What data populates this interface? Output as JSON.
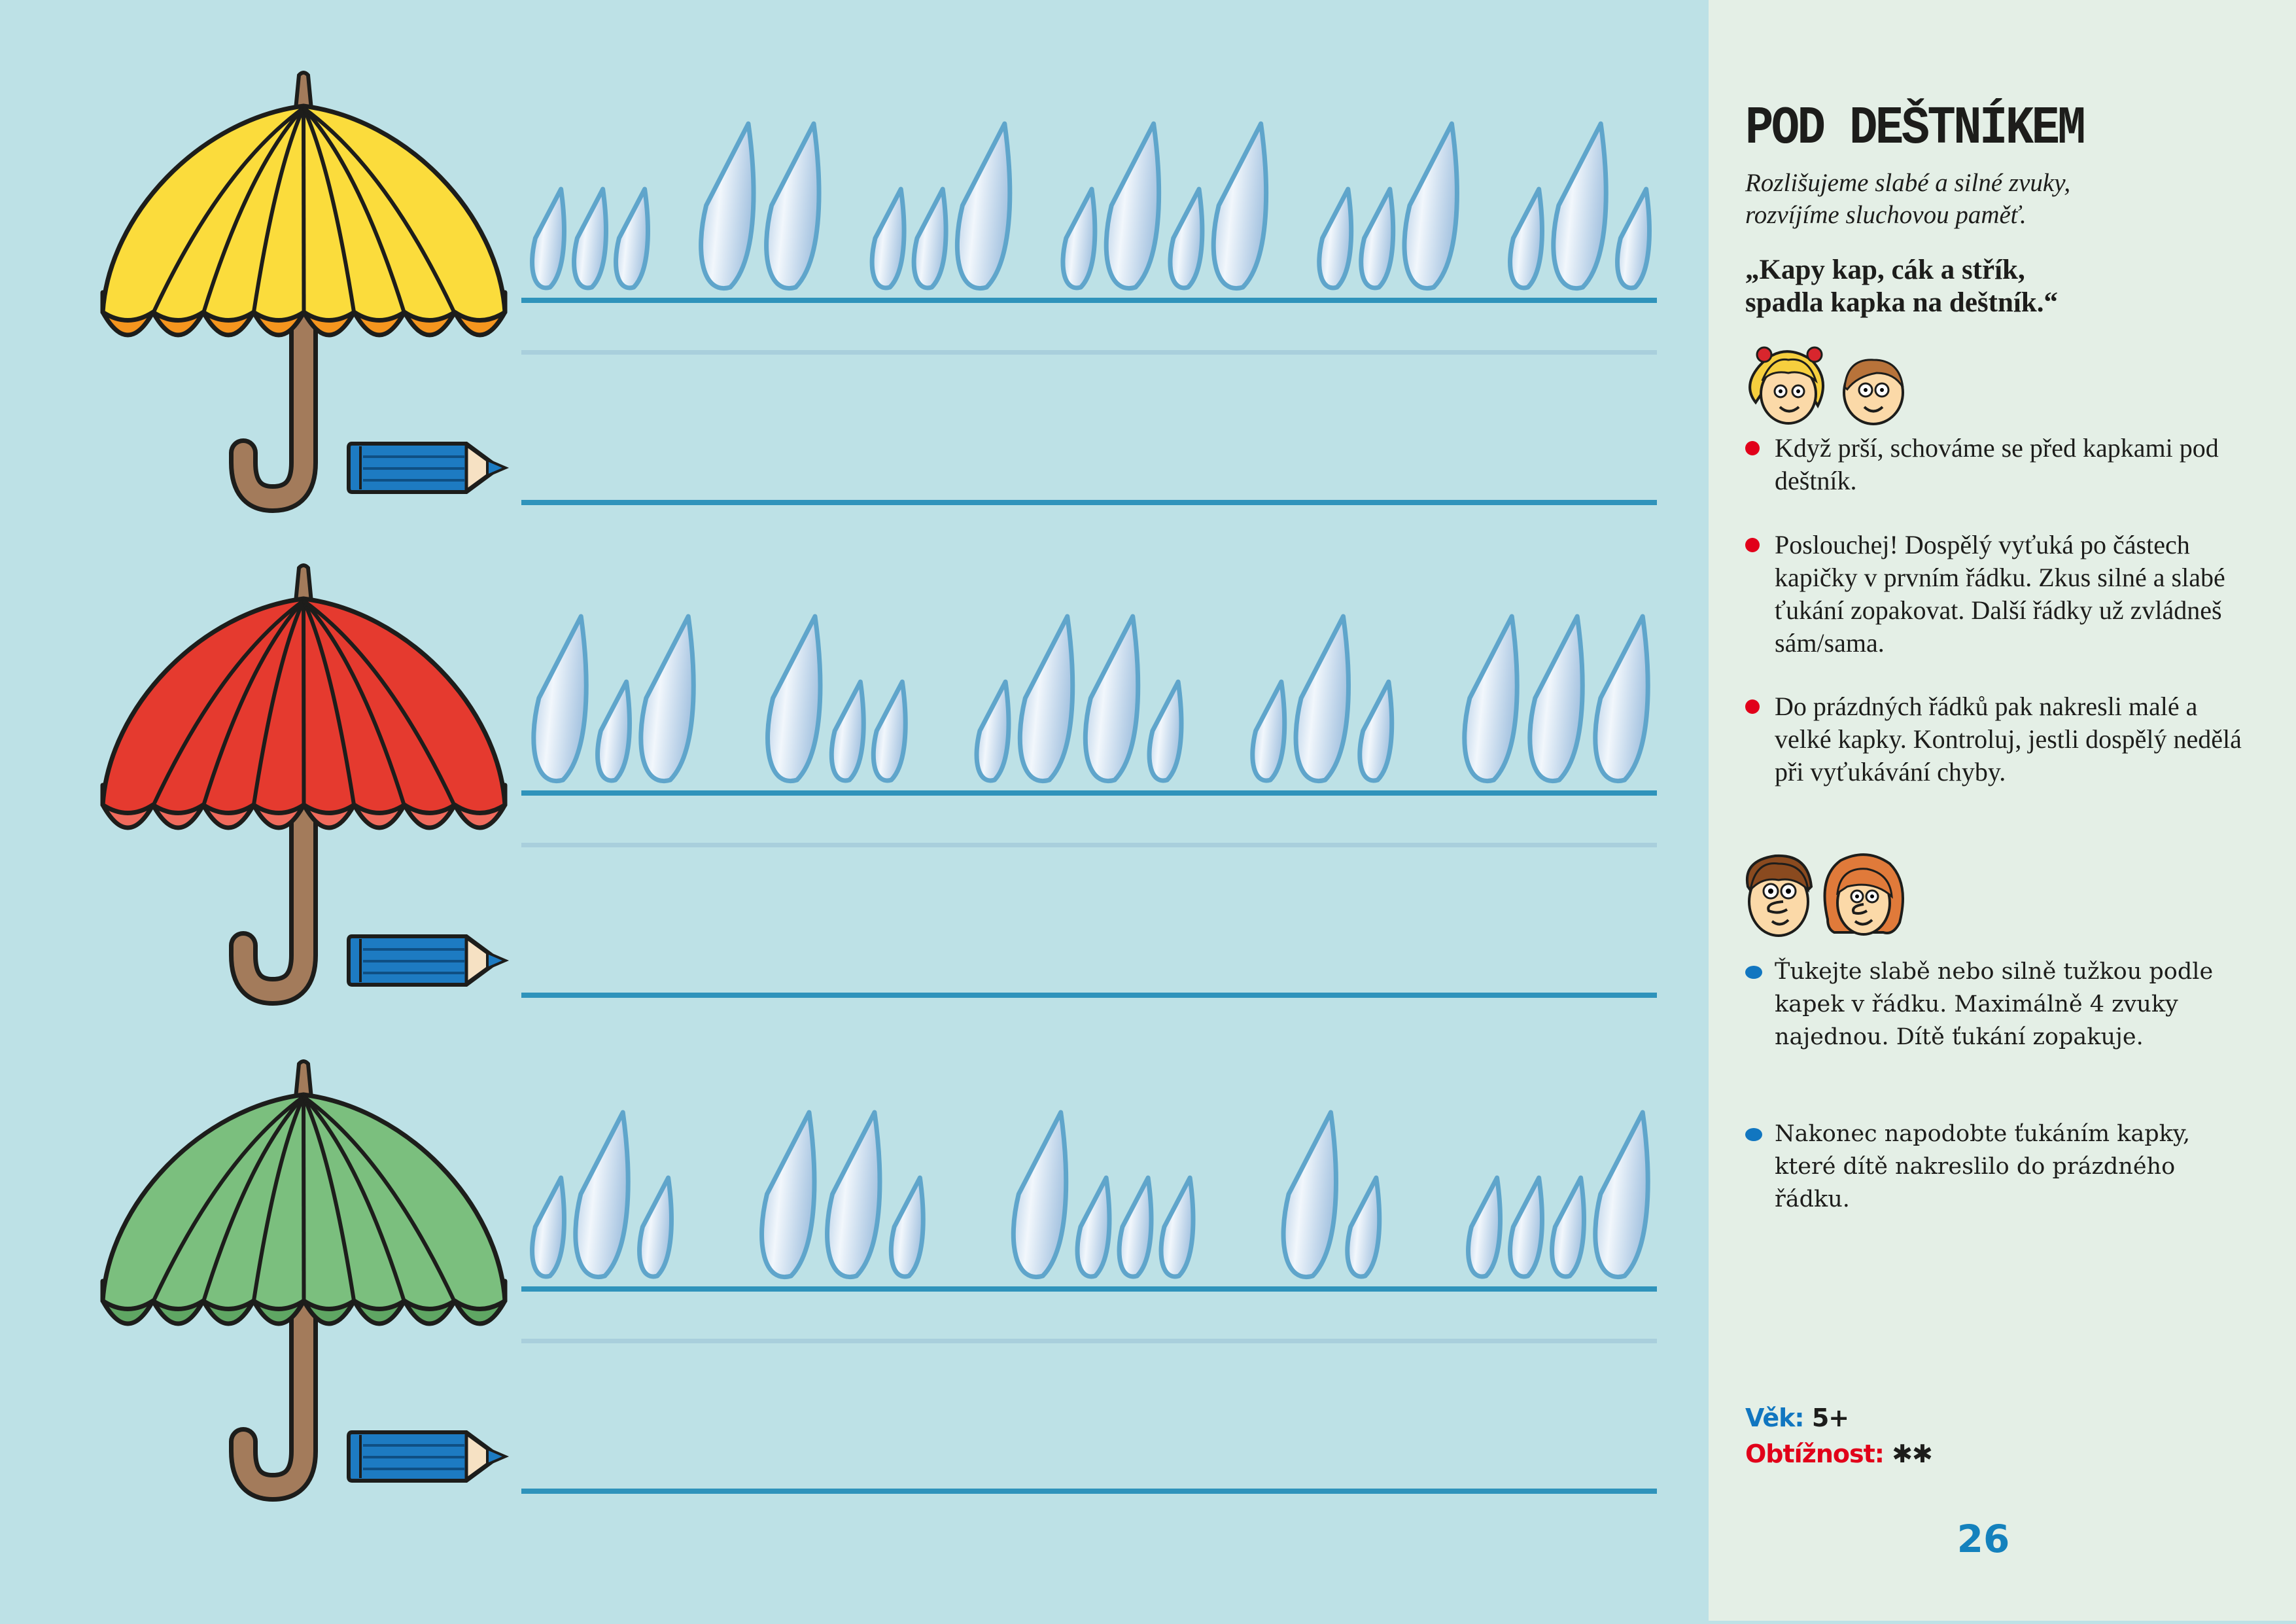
{
  "colors": {
    "page_bg": "#bde1e6",
    "panel_bg": "#e4efe6",
    "line_dark": "#2f93bb",
    "line_light": "#a9cfdc",
    "drop_stroke": "#5fa5cb",
    "bullet_red": "#e1001a",
    "bullet_blue": "#1176c0",
    "label_blue": "#1176c0",
    "label_red": "#e1001a",
    "page_number": "#1481bd"
  },
  "exercise_rows": [
    {
      "umbrella": {
        "main": "#fbdc3c",
        "accent": "#f5951e"
      },
      "drop_groups": [
        [
          "s",
          "s",
          "s"
        ],
        [
          "L",
          "L"
        ],
        [
          "s",
          "s",
          "L"
        ],
        [
          "s",
          "L",
          "s",
          "L"
        ],
        [
          "s",
          "s",
          "L"
        ],
        [
          "s",
          "L",
          "s"
        ]
      ]
    },
    {
      "umbrella": {
        "main": "#e53a2f",
        "accent": "#f06a5c"
      },
      "drop_groups": [
        [
          "L",
          "s",
          "L"
        ],
        [
          "L",
          "s",
          "s"
        ],
        [
          "s",
          "L",
          "L",
          "s"
        ],
        [
          "s",
          "L",
          "s"
        ],
        [
          "L",
          "L",
          "L"
        ]
      ]
    },
    {
      "umbrella": {
        "main": "#7bbf7e",
        "accent": "#5fa663"
      },
      "drop_groups": [
        [
          "s",
          "L",
          "s"
        ],
        [
          "L",
          "L",
          "s"
        ],
        [
          "L",
          "s",
          "s",
          "s"
        ],
        [
          "L",
          "s"
        ],
        [
          "s",
          "s",
          "s",
          "L"
        ]
      ]
    }
  ],
  "icons": {
    "umbrella": "umbrella-icon",
    "pencil": "pencil-icon",
    "drop": "raindrop-icon",
    "children": "children-faces-icon",
    "adults": "adults-faces-icon"
  },
  "panel": {
    "title": "POD DEŠTNÍKEM",
    "subtitle": [
      "Rozlišujeme slabé a silné zvuky,",
      "rozvíjíme sluchovou paměť."
    ],
    "quote": [
      "„Kapy kap, cák a střík,",
      "spadla kapka na deštník.“"
    ],
    "child_bullets": [
      "Když prší, schováme se před kapkami pod deštník.",
      "Poslouchej! Dospělý vyťuká po částech kapičky v prvním řádku. Zkus silné a slabé ťukání zopakovat. Další řádky už zvládneš sám/sama.",
      "Do prázdných řádků pak nakresli malé a velké kapky. Kontroluj, jestli dospělý nedělá při vyťukávání chyby."
    ],
    "adult_bullets": [
      "Ťukejte slabě nebo silně tužkou podle kapek v řádku. Maximálně 4 zvuky najednou. Dítě ťukání zopakuje.",
      "Nakonec napodobte ťukáním kapky, které dítě nakreslilo do prázdného řádku."
    ],
    "age_label": "Věk:",
    "age_value": "5+",
    "difficulty_label": "Obtížnost:",
    "difficulty_value": "✱✱",
    "difficulty_level": 2,
    "page_number": "26"
  }
}
